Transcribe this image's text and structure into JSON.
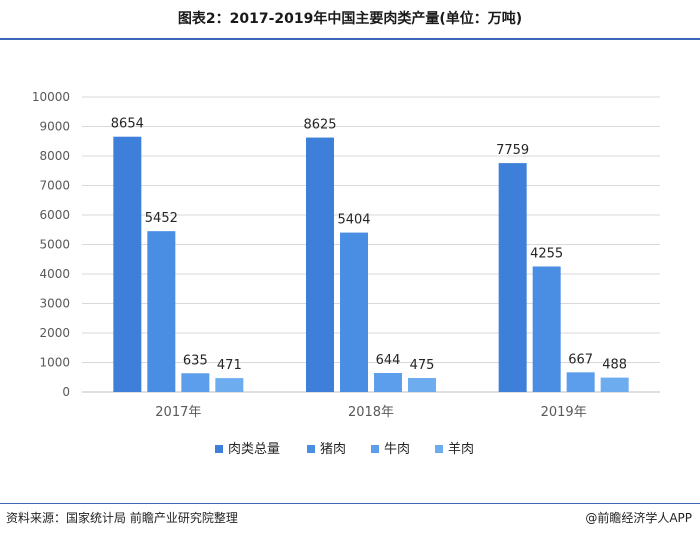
{
  "header": {
    "title": "图表2：2017-2019年中国主要肉类产量(单位：万吨)"
  },
  "footer": {
    "source": "资料来源：国家统计局 前瞻产业研究院整理",
    "brand": "@前瞻经济学人APP"
  },
  "chart_data": {
    "type": "bar",
    "title": "图表2：2017-2019年中国主要肉类产量(单位：万吨)",
    "categories": [
      "2017年",
      "2018年",
      "2019年"
    ],
    "series": [
      {
        "name": "肉类总量",
        "values": [
          8654,
          8625,
          7759
        ],
        "color": "#3d7fd9"
      },
      {
        "name": "猪肉",
        "values": [
          5452,
          5404,
          4255
        ],
        "color": "#4a8ee3"
      },
      {
        "name": "牛肉",
        "values": [
          635,
          644,
          667
        ],
        "color": "#5c9eeb"
      },
      {
        "name": "羊肉",
        "values": [
          471,
          475,
          488
        ],
        "color": "#6eacf0"
      }
    ],
    "yticks": [
      "0",
      "1000",
      "2000",
      "3000",
      "4000",
      "5000",
      "6000",
      "7000",
      "8000",
      "9000",
      "10000"
    ],
    "ylim": [
      0,
      10000
    ],
    "grid": true,
    "legend": "bottom"
  }
}
